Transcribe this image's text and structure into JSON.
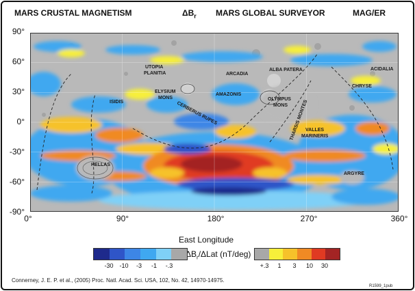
{
  "header": {
    "title_left": "MARS CRUSTAL MAGNETISM",
    "title_mid_prefix": "ΔB",
    "title_mid_sub": "r",
    "title_center": "MARS GLOBAL SURVEYOR",
    "title_right": "MAG/ER"
  },
  "axes": {
    "lat_ticks": [
      "90°",
      "60°",
      "30°",
      "0°",
      "-30°",
      "-60°",
      "-90°"
    ],
    "lon_ticks": [
      "0°",
      "90°",
      "180°",
      "270°",
      "360°"
    ],
    "lon_title": "East Longitude"
  },
  "places": [
    {
      "name": "UTOPIA"
    },
    {
      "name": "PLANITIA"
    },
    {
      "name": "ARCADIA"
    },
    {
      "name": "ALBA PATERA"
    },
    {
      "name": "ACIDALIA"
    },
    {
      "name": "CHRYSE"
    },
    {
      "name": "ELYSIUM"
    },
    {
      "name": "MONS"
    },
    {
      "name": "ISIDIS"
    },
    {
      "name": "AMAZONIS"
    },
    {
      "name": "OLYMPUS"
    },
    {
      "name": "MONS"
    },
    {
      "name": "CERBERUS RUPES"
    },
    {
      "name": "THARSIS MONTES"
    },
    {
      "name": "VALLES"
    },
    {
      "name": "MARINERIS"
    },
    {
      "name": "HELLAS"
    },
    {
      "name": "ARGYRE"
    }
  ],
  "legend": {
    "label_prefix": "ΔB",
    "label_sub": "r",
    "label_suffix": "/ΔLat (nT/deg)",
    "negative_ticks": [
      "-30",
      "-10",
      "-3",
      "-1",
      "-.3"
    ],
    "positive_ticks": [
      "+.3",
      "1",
      "3",
      "10",
      "30"
    ],
    "negative_colors": [
      "#1e2a8c",
      "#2f55c8",
      "#3d86e6",
      "#3fa8f0",
      "#7fd0f7"
    ],
    "neutral_color": "#a8a8a8",
    "positive_colors": [
      "#f7ef3a",
      "#f6c22a",
      "#f08a24",
      "#e03a22",
      "#a32424"
    ]
  },
  "credit": "Connerney, J. E. P. et al., (2005) Proc. Natl. Acad. Sci. USA, 102, No. 42, 14970-14975.",
  "code": "R1599_1pub"
}
